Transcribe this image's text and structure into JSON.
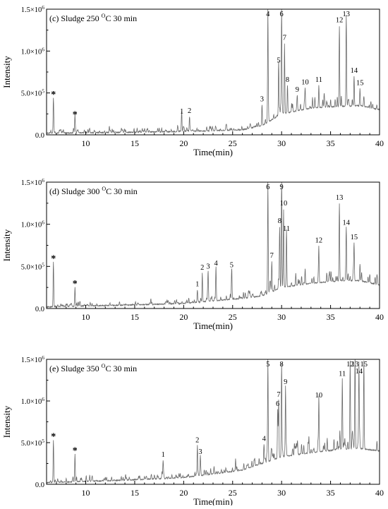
{
  "chart_data": [
    {
      "type": "line",
      "title": "(c) Sludge 250 °C 30 min",
      "title_parts": {
        "prefix": "(c) Sludge 250 ",
        "sup": "O",
        "suffix": "C 30 min"
      },
      "xlabel": "Time(min)",
      "ylabel": "Intensity",
      "xlim": [
        6,
        40
      ],
      "ylim": [
        0,
        1500000
      ],
      "xticks": [
        10,
        15,
        20,
        25,
        30,
        35,
        40
      ],
      "xtick_labels": [
        "10",
        "15",
        "20",
        "25",
        "30",
        "35",
        "40"
      ],
      "yticks": [
        0,
        500000,
        1000000,
        1500000
      ],
      "ytick_labels": [
        {
          "base": "0.0",
          "exp": ""
        },
        {
          "base": "5.0×10",
          "exp": "5"
        },
        {
          "base": "1.0×10",
          "exp": "6"
        },
        {
          "base": "1.5×10",
          "exp": "6"
        }
      ],
      "baseline": [
        [
          6,
          20000
        ],
        [
          14,
          30000
        ],
        [
          20,
          40000
        ],
        [
          26,
          60000
        ],
        [
          28,
          110000
        ],
        [
          30,
          250000
        ],
        [
          33,
          320000
        ],
        [
          36,
          340000
        ],
        [
          38,
          350000
        ],
        [
          40,
          300000
        ]
      ],
      "peaks": [
        {
          "x": 6.7,
          "y": 440000,
          "label": "*"
        },
        {
          "x": 8.9,
          "y": 200000,
          "label": "*"
        },
        {
          "x": 19.8,
          "y": 210000,
          "label": "1"
        },
        {
          "x": 20.6,
          "y": 220000,
          "label": "2"
        },
        {
          "x": 28.0,
          "y": 360000,
          "label": "3"
        },
        {
          "x": 28.6,
          "y": 1500000,
          "label": "4"
        },
        {
          "x": 29.7,
          "y": 820000,
          "label": "5"
        },
        {
          "x": 30.0,
          "y": 1500000,
          "label": "6"
        },
        {
          "x": 30.3,
          "y": 1090000,
          "label": "7"
        },
        {
          "x": 30.6,
          "y": 590000,
          "label": "8"
        },
        {
          "x": 31.6,
          "y": 470000,
          "label": "9"
        },
        {
          "x": 32.4,
          "y": 560000,
          "label": "10"
        },
        {
          "x": 33.8,
          "y": 590000,
          "label": "11"
        },
        {
          "x": 35.9,
          "y": 1300000,
          "label": "12"
        },
        {
          "x": 36.6,
          "y": 1400000,
          "label": "13"
        },
        {
          "x": 37.4,
          "y": 700000,
          "label": "14"
        },
        {
          "x": 38.0,
          "y": 550000,
          "label": "15"
        }
      ]
    },
    {
      "type": "line",
      "title": "(d) Sludge 300 °C 30 min",
      "title_parts": {
        "prefix": "(d) Sludge 300 ",
        "sup": "O",
        "suffix": "C 30 min"
      },
      "xlabel": "Time(min)",
      "ylabel": "Intensity",
      "xlim": [
        6,
        40
      ],
      "ylim": [
        0,
        1500000
      ],
      "xticks": [
        10,
        15,
        20,
        25,
        30,
        35,
        40
      ],
      "xtick_labels": [
        "10",
        "15",
        "20",
        "25",
        "30",
        "35",
        "40"
      ],
      "yticks": [
        0,
        500000,
        1000000,
        1500000
      ],
      "ytick_labels": [
        {
          "base": "0.0",
          "exp": ""
        },
        {
          "base": "5.0×10",
          "exp": "5"
        },
        {
          "base": "1.0×10",
          "exp": "6"
        },
        {
          "base": "1.5×10",
          "exp": "6"
        }
      ],
      "baseline": [
        [
          6,
          20000
        ],
        [
          14,
          40000
        ],
        [
          20,
          60000
        ],
        [
          26,
          120000
        ],
        [
          28,
          150000
        ],
        [
          30,
          250000
        ],
        [
          33,
          300000
        ],
        [
          36,
          330000
        ],
        [
          38,
          330000
        ],
        [
          40,
          280000
        ]
      ],
      "peaks": [
        {
          "x": 6.7,
          "y": 550000,
          "label": "*"
        },
        {
          "x": 8.9,
          "y": 250000,
          "label": "*"
        },
        {
          "x": 21.4,
          "y": 220000,
          "label": "1"
        },
        {
          "x": 21.9,
          "y": 420000,
          "label": "2"
        },
        {
          "x": 22.5,
          "y": 430000,
          "label": "3"
        },
        {
          "x": 23.3,
          "y": 470000,
          "label": "4"
        },
        {
          "x": 24.9,
          "y": 450000,
          "label": "5"
        },
        {
          "x": 28.6,
          "y": 1500000,
          "label": "6"
        },
        {
          "x": 29.0,
          "y": 560000,
          "label": "7"
        },
        {
          "x": 29.8,
          "y": 970000,
          "label": "8"
        },
        {
          "x": 30.0,
          "y": 1500000,
          "label": "9"
        },
        {
          "x": 30.2,
          "y": 1180000,
          "label": "10"
        },
        {
          "x": 30.5,
          "y": 880000,
          "label": "11"
        },
        {
          "x": 33.8,
          "y": 740000,
          "label": "12"
        },
        {
          "x": 35.9,
          "y": 1250000,
          "label": "13"
        },
        {
          "x": 36.6,
          "y": 950000,
          "label": "14"
        },
        {
          "x": 37.4,
          "y": 780000,
          "label": "15"
        }
      ]
    },
    {
      "type": "line",
      "title": "(e) Sludge 350 °C 30 min",
      "title_parts": {
        "prefix": "(e) Sludge 350 ",
        "sup": "O",
        "suffix": "C 30 min"
      },
      "xlabel": "Time(min)",
      "ylabel": "Intensity",
      "xlim": [
        6,
        40
      ],
      "ylim": [
        0,
        1500000
      ],
      "xticks": [
        10,
        15,
        20,
        25,
        30,
        35,
        40
      ],
      "xtick_labels": [
        "10",
        "15",
        "20",
        "25",
        "30",
        "35",
        "40"
      ],
      "yticks": [
        0,
        500000,
        1000000,
        1500000
      ],
      "ytick_labels": [
        {
          "base": "0.0",
          "exp": ""
        },
        {
          "base": "5.0×10",
          "exp": "5"
        },
        {
          "base": "1.0×10",
          "exp": "6"
        },
        {
          "base": "1.5×10",
          "exp": "6"
        }
      ],
      "baseline": [
        [
          6,
          20000
        ],
        [
          14,
          50000
        ],
        [
          20,
          80000
        ],
        [
          26,
          170000
        ],
        [
          28,
          250000
        ],
        [
          30,
          330000
        ],
        [
          33,
          380000
        ],
        [
          36,
          420000
        ],
        [
          38,
          430000
        ],
        [
          40,
          400000
        ]
      ],
      "peaks": [
        {
          "x": 6.7,
          "y": 530000,
          "label": "*"
        },
        {
          "x": 8.9,
          "y": 360000,
          "label": "*"
        },
        {
          "x": 17.9,
          "y": 290000,
          "label": "1"
        },
        {
          "x": 21.4,
          "y": 460000,
          "label": "2"
        },
        {
          "x": 21.7,
          "y": 320000,
          "label": "3"
        },
        {
          "x": 28.2,
          "y": 480000,
          "label": "4"
        },
        {
          "x": 28.6,
          "y": 1500000,
          "label": "5"
        },
        {
          "x": 29.6,
          "y": 900000,
          "label": "6"
        },
        {
          "x": 29.7,
          "y": 1010000,
          "label": "7"
        },
        {
          "x": 30.0,
          "y": 1460000,
          "label": "8"
        },
        {
          "x": 30.4,
          "y": 1160000,
          "label": "9"
        },
        {
          "x": 33.8,
          "y": 1000000,
          "label": "10"
        },
        {
          "x": 36.2,
          "y": 1260000,
          "label": "11"
        },
        {
          "x": 37.0,
          "y": 1480000,
          "label": "12"
        },
        {
          "x": 37.5,
          "y": 1500000,
          "label": "13"
        },
        {
          "x": 37.9,
          "y": 1290000,
          "label": "14"
        },
        {
          "x": 38.4,
          "y": 1480000,
          "label": "15"
        }
      ]
    }
  ]
}
